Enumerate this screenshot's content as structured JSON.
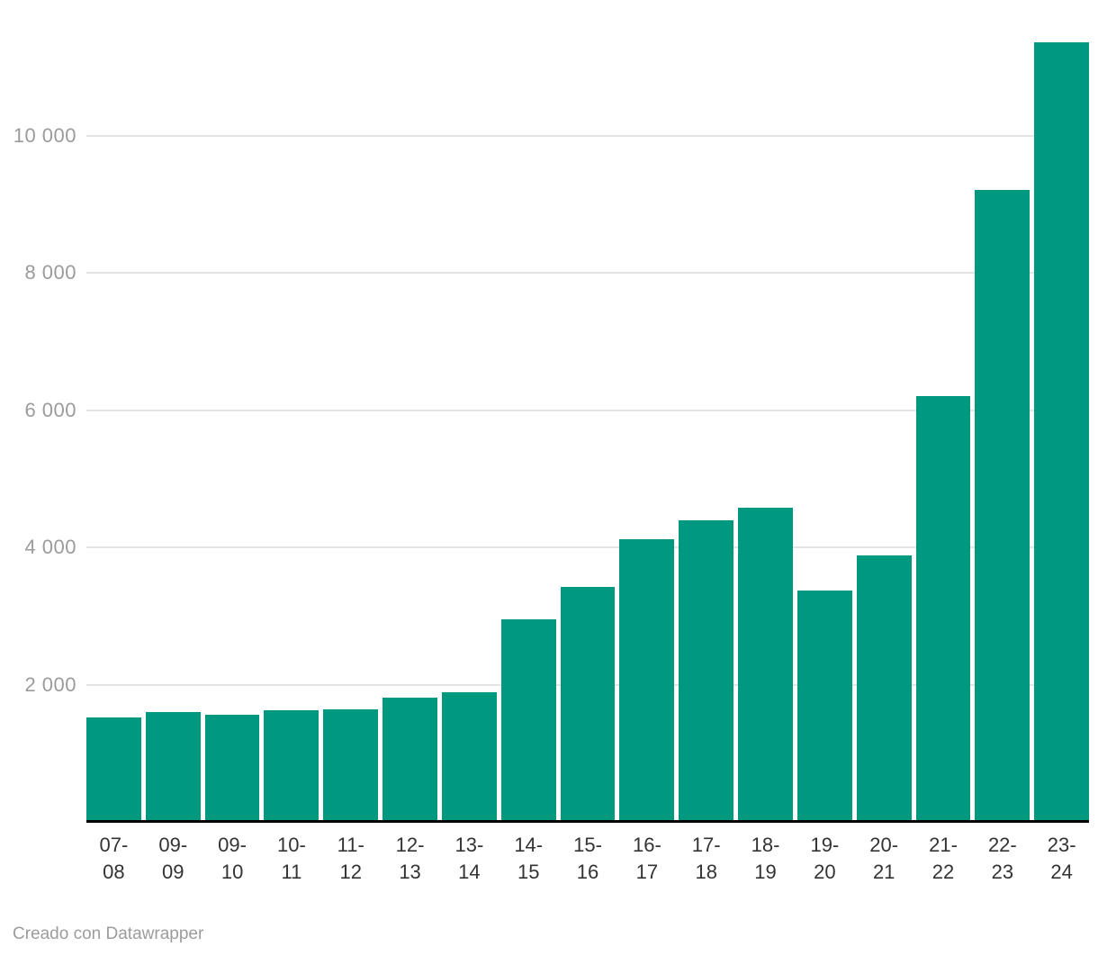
{
  "chart_data": {
    "type": "bar",
    "title": "",
    "xlabel": "",
    "ylabel": "",
    "categories": [
      "07-08",
      "09-09",
      "09-10",
      "10-11",
      "11-12",
      "12-13",
      "13-14",
      "14-15",
      "15-16",
      "16-17",
      "17-18",
      "18-19",
      "19-20",
      "20-21",
      "21-22",
      "22-23",
      "23-24"
    ],
    "values": [
      1500,
      1580,
      1530,
      1600,
      1620,
      1790,
      1870,
      2930,
      3400,
      4090,
      4370,
      4550,
      3340,
      3860,
      6180,
      9190,
      11340
    ],
    "ylim": [
      0,
      11500
    ],
    "grid": "horizontal",
    "legend": "none",
    "y_ticks": {
      "values": [
        2000,
        4000,
        6000,
        8000,
        10000
      ],
      "labels": [
        "2 000",
        "4 000",
        "6 000",
        "8 000",
        "10 000"
      ]
    },
    "x_tick_lines": [
      [
        "07-",
        "08"
      ],
      [
        "09-",
        "09"
      ],
      [
        "09-",
        "10"
      ],
      [
        "10-",
        "11"
      ],
      [
        "11-",
        "12"
      ],
      [
        "12-",
        "13"
      ],
      [
        "13-",
        "14"
      ],
      [
        "14-",
        "15"
      ],
      [
        "15-",
        "16"
      ],
      [
        "16-",
        "17"
      ],
      [
        "17-",
        "18"
      ],
      [
        "18-",
        "19"
      ],
      [
        "19-",
        "20"
      ],
      [
        "20-",
        "21"
      ],
      [
        "21-",
        "22"
      ],
      [
        "22-",
        "23"
      ],
      [
        "23-",
        "24"
      ]
    ],
    "bar_color": "#00997f"
  },
  "colors": {
    "bar": "#00997f",
    "gridline": "#e4e4e4",
    "axis_line": "#000000",
    "y_tick_text": "#9b9b9b",
    "x_tick_text": "#333333",
    "credit_text": "#9c9c9c",
    "background": "#ffffff"
  },
  "footer": {
    "credit": "Creado con Datawrapper"
  }
}
